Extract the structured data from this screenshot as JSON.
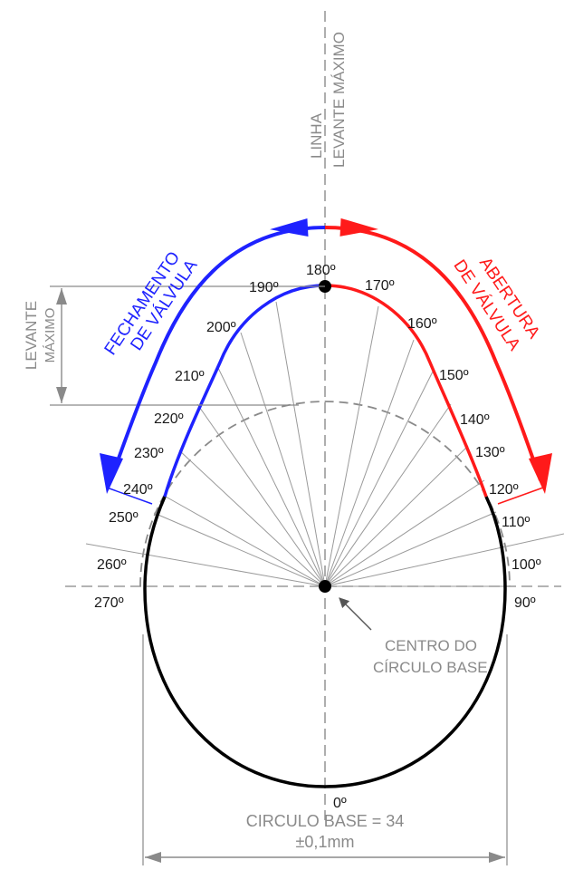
{
  "labels": {
    "linha_line1": "LINHA",
    "linha_line2": "LEVANTE MÁXIMO",
    "levante_line1": "LEVANTE",
    "levante_line2": "MÁXIMO",
    "fechamento_line1": "FECHAMENTO",
    "fechamento_line2": "DE VÁLVULA",
    "abertura_line1": "ABERTURA",
    "abertura_line2": "DE VÁLVULA",
    "centro_line1": "CENTRO DO",
    "centro_line2": "CÍRCULO BASE",
    "base_line1": "CIRCULO BASE = 34",
    "base_line2": "±0,1mm"
  },
  "angles": [
    "0º",
    "90º",
    "100º",
    "110º",
    "120º",
    "130º",
    "140º",
    "150º",
    "160º",
    "170º",
    "180º",
    "190º",
    "200º",
    "210º",
    "220º",
    "230º",
    "240º",
    "250º",
    "260º",
    "270º"
  ],
  "colors": {
    "opening": "#ff1a1a",
    "closing": "#1e22ff",
    "base": "#000000",
    "guide": "#8a8a8a"
  }
}
